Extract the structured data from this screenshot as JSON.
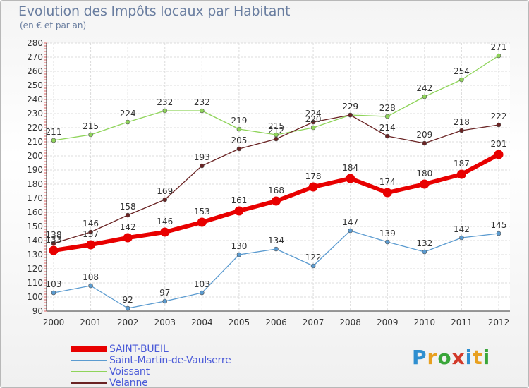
{
  "title": "Evolution des Impôts locaux par Habitant",
  "subtitle": "(en € et par an)",
  "logo": {
    "text": "Proxiti",
    "letters": [
      {
        "ch": "P",
        "color": "#2f8fd0"
      },
      {
        "ch": "r",
        "color": "#e8a020"
      },
      {
        "ch": "o",
        "color": "#3aa63a"
      },
      {
        "ch": "x",
        "color": "#d23a2a"
      },
      {
        "ch": "i",
        "color": "#2f8fd0"
      },
      {
        "ch": "t",
        "color": "#e8a020"
      },
      {
        "ch": "i",
        "color": "#3aa63a"
      }
    ]
  },
  "chart_data": {
    "type": "line",
    "title": "Evolution des Impôts locaux par Habitant",
    "subtitle": "(en € et par an)",
    "x": [
      "2000",
      "2001",
      "2002",
      "2003",
      "2004",
      "2005",
      "2006",
      "2007",
      "2008",
      "2009",
      "2010",
      "2011",
      "2012"
    ],
    "ylim": [
      90,
      280
    ],
    "yticks": [
      90,
      100,
      110,
      120,
      130,
      140,
      150,
      160,
      170,
      180,
      190,
      200,
      210,
      220,
      230,
      240,
      250,
      260,
      270,
      280
    ],
    "grid": true,
    "legend": "bottom-left",
    "series": [
      {
        "name": "SAINT-BUEIL",
        "color": "#e80000",
        "values": [
          133,
          137,
          142,
          146,
          153,
          161,
          168,
          178,
          184,
          174,
          180,
          187,
          201
        ]
      },
      {
        "name": "Saint-Martin-de-Vaulserre",
        "color": "#5b9bd0",
        "values": [
          103,
          108,
          92,
          97,
          103,
          130,
          134,
          122,
          147,
          139,
          132,
          142,
          145
        ]
      },
      {
        "name": "Voissant",
        "color": "#8fd45a",
        "values": [
          211,
          215,
          224,
          232,
          232,
          219,
          215,
          220,
          229,
          228,
          242,
          254,
          271
        ]
      },
      {
        "name": "Velanne",
        "color": "#6a2424",
        "values": [
          138,
          146,
          158,
          169,
          193,
          205,
          212,
          224,
          229,
          214,
          209,
          218,
          222
        ]
      }
    ]
  }
}
